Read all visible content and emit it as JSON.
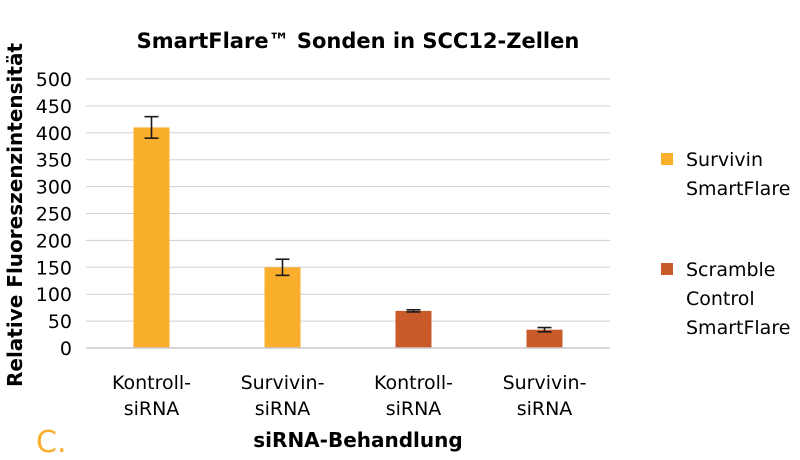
{
  "chart_data": {
    "type": "bar",
    "title": "SmartFlare™ Sonden in SCC12-Zellen",
    "xlabel": "siRNA-Behandlung",
    "ylabel": "Relative Fluoreszenzintensität",
    "ylim": [
      0,
      500
    ],
    "yticks": [
      "0",
      "50",
      "100",
      "150",
      "200",
      "250",
      "300",
      "350",
      "400",
      "450",
      "500"
    ],
    "grid": true,
    "legend_position": "right",
    "panel_label": "C.",
    "categories": [
      [
        "Kontroll-",
        "siRNA"
      ],
      [
        "Survivin-",
        "siRNA"
      ],
      [
        "Kontroll-",
        "siRNA"
      ],
      [
        "Survivin-",
        "siRNA"
      ]
    ],
    "series": [
      {
        "name": [
          "Survivin",
          "SmartFlare"
        ],
        "color": "#F9AE2C",
        "values": [
          410,
          150,
          null,
          null
        ],
        "errors": [
          20,
          15,
          null,
          null
        ]
      },
      {
        "name": [
          "Scramble",
          "Control",
          "SmartFlare"
        ],
        "color": "#C95B2B",
        "values": [
          null,
          null,
          69,
          34
        ],
        "errors": [
          null,
          null,
          2,
          4
        ]
      }
    ]
  }
}
